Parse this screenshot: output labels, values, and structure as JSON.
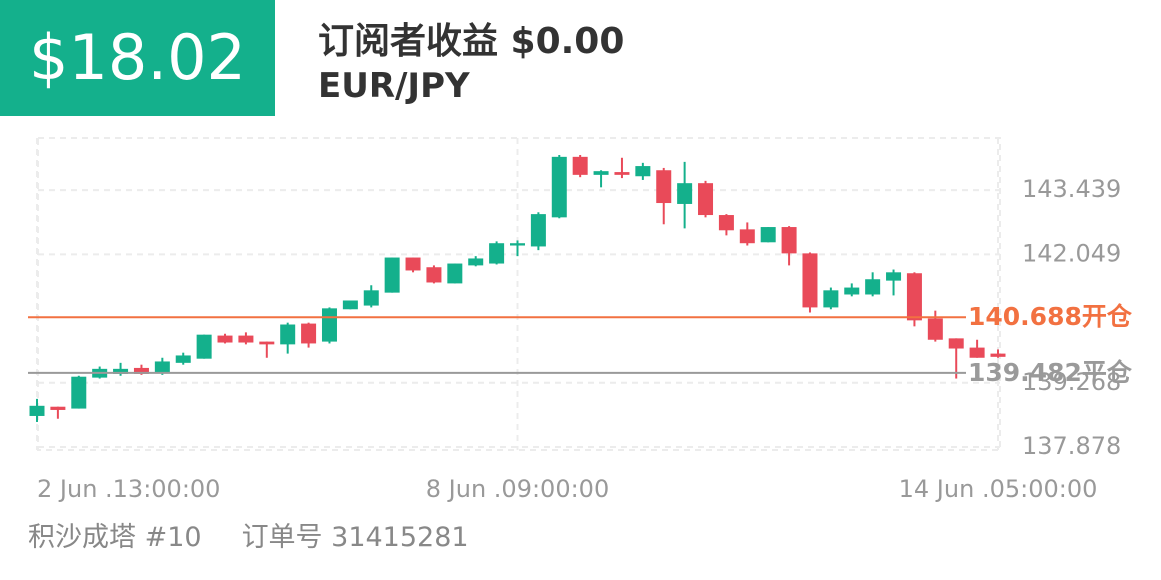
{
  "header": {
    "profit": "$18.02",
    "title": "订阅者收益 $0.00",
    "symbol": "EUR/JPY"
  },
  "chart_data": {
    "type": "candlestick",
    "categories": [
      "2 Jun .13:00:00",
      null,
      null,
      null,
      null,
      null,
      null,
      null,
      null,
      null,
      null,
      null,
      null,
      null,
      null,
      null,
      null,
      null,
      null,
      null,
      null,
      null,
      null,
      "8 Jun .09:00:00",
      null,
      null,
      null,
      null,
      null,
      null,
      null,
      null,
      null,
      null,
      null,
      null,
      null,
      null,
      null,
      null,
      null,
      null,
      null,
      null,
      null,
      null,
      "14 Jun .05:00:00"
    ],
    "open": [
      138.55,
      138.75,
      138.71,
      139.38,
      139.46,
      139.59,
      139.49,
      139.7,
      139.79,
      140.29,
      140.29,
      140.16,
      140.1,
      140.55,
      140.16,
      140.86,
      140.94,
      141.22,
      141.98,
      141.77,
      141.42,
      141.81,
      141.85,
      142.24,
      142.22,
      142.85,
      144.16,
      143.77,
      143.83,
      143.74,
      143.87,
      143.14,
      143.59,
      142.9,
      142.59,
      142.31,
      142.64,
      142.07,
      140.9,
      141.18,
      141.18,
      141.48,
      141.64,
      140.66,
      140.23,
      140.03,
      139.9
    ],
    "high": [
      138.92,
      138.75,
      139.42,
      139.62,
      139.7,
      139.66,
      139.81,
      139.92,
      140.31,
      140.33,
      140.36,
      140.16,
      140.57,
      140.57,
      140.9,
      141.05,
      141.38,
      141.98,
      141.98,
      141.81,
      141.85,
      142.01,
      142.33,
      142.35,
      142.96,
      144.2,
      144.2,
      143.87,
      144.14,
      144.03,
      143.92,
      144.05,
      143.64,
      142.92,
      142.74,
      142.64,
      142.66,
      142.09,
      141.33,
      141.42,
      141.66,
      141.72,
      141.66,
      140.83,
      140.23,
      140.2,
      139.99
    ],
    "low": [
      138.42,
      138.49,
      138.71,
      139.36,
      139.42,
      139.44,
      139.44,
      139.66,
      139.79,
      140.12,
      140.1,
      139.81,
      139.9,
      140.03,
      140.12,
      140.86,
      140.9,
      141.22,
      141.66,
      141.42,
      141.42,
      141.79,
      141.83,
      142.01,
      142.14,
      142.83,
      143.72,
      143.5,
      143.7,
      143.66,
      142.7,
      142.61,
      142.85,
      142.46,
      142.24,
      142.31,
      141.81,
      140.79,
      140.86,
      141.14,
      141.14,
      141.16,
      140.49,
      140.16,
      139.36,
      139.81,
      139.81
    ],
    "close": [
      138.77,
      138.68,
      139.4,
      139.57,
      139.57,
      139.46,
      139.73,
      139.86,
      140.31,
      140.14,
      140.14,
      140.1,
      140.53,
      140.12,
      140.88,
      141.05,
      141.27,
      141.98,
      141.7,
      141.44,
      141.85,
      141.96,
      142.29,
      142.29,
      142.92,
      144.16,
      143.77,
      143.85,
      143.77,
      143.96,
      143.16,
      143.59,
      142.9,
      142.57,
      142.29,
      142.64,
      142.07,
      140.9,
      141.27,
      141.33,
      141.51,
      141.66,
      140.62,
      140.2,
      140.01,
      139.81,
      139.83
    ],
    "up_color": "#14b08c",
    "down_color": "#e94a59",
    "ylim": [
      137.813,
      144.568
    ],
    "yticks": [
      143.439,
      142.049,
      139.268,
      137.878
    ],
    "grid": true,
    "reference_lines": [
      {
        "value": 140.688,
        "label": "140.688开仓",
        "color": "#f27141"
      },
      {
        "value": 139.482,
        "label": "139.482平仓",
        "color": "#9a9a9a"
      }
    ]
  },
  "footer": {
    "name": "积沙成塔 #10",
    "order": "订单号 31415281"
  }
}
